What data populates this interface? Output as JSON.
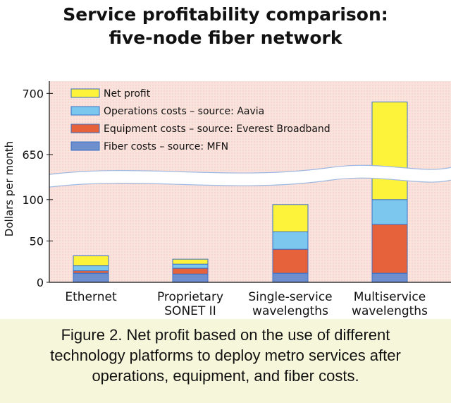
{
  "chart_data": {
    "type": "bar",
    "stacked": true,
    "title": [
      "Service profitability comparison:",
      "five-node fiber network"
    ],
    "ylabel": "Dollars per month",
    "y_axis_broken": true,
    "y_segments": [
      {
        "range": [
          0,
          125
        ],
        "ticks": [
          0,
          50,
          100
        ]
      },
      {
        "range": [
          635,
          710
        ],
        "ticks": [
          650,
          700
        ]
      }
    ],
    "categories": [
      [
        "Ethernet"
      ],
      [
        "Proprietary",
        "SONET II"
      ],
      [
        "Single-service",
        "wavelengths"
      ],
      [
        "Multiservice",
        "wavelengths"
      ]
    ],
    "series": [
      {
        "name": "Fiber costs – source: MFN",
        "color": "#6e8fce",
        "values": [
          11,
          10,
          11,
          11
        ]
      },
      {
        "name": "Equipment costs – source: Everest Broadband",
        "color": "#e5623a",
        "values": [
          3,
          7,
          29,
          59
        ]
      },
      {
        "name": "Operations costs – source: Aavia",
        "color": "#7bc7ee",
        "values": [
          6,
          5,
          21,
          30
        ]
      },
      {
        "name": "Net profit",
        "color": "#fdf33a",
        "values": [
          12,
          6,
          33,
          593
        ]
      }
    ],
    "legend": {
      "placement": "top-left",
      "order": [
        "Net profit",
        "Operations costs – source: Aavia",
        "Equipment costs – source: Everest Broadband",
        "Fiber costs – source: MFN"
      ]
    },
    "colors": {
      "plot_background": "#fbe3dd",
      "outline": "#3a6fc4"
    }
  },
  "caption": {
    "lines": [
      "Figure 2. Net profit based on the use of different",
      "technology platforms to deploy metro services after",
      "operations, equipment, and fiber costs."
    ]
  }
}
